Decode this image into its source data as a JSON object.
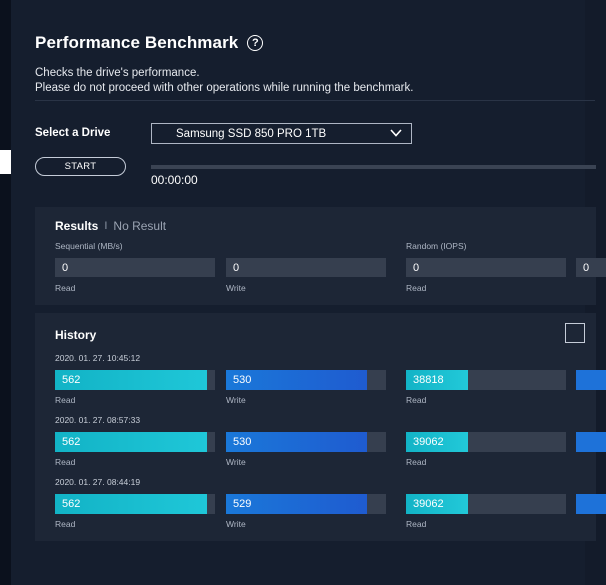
{
  "header": {
    "title": "Performance Benchmark",
    "help_icon": "question-circle-icon",
    "desc_line1": "Checks the drive's performance.",
    "desc_line2": "Please do not proceed with other operations while running the benchmark."
  },
  "drive": {
    "label": "Select a Drive",
    "selected": "Samsung SSD 850 PRO 1TB"
  },
  "controls": {
    "start_label": "START",
    "timer": "00:00:00"
  },
  "results": {
    "title": "Results",
    "separator": "I",
    "status": "No Result",
    "sequential_label": "Sequential (MB/s)",
    "random_label": "Random (IOPS)",
    "seq_read": "0",
    "seq_write": "0",
    "rand_read": "0",
    "rand_write": "0",
    "read_label": "Read",
    "write_label": "Write"
  },
  "history": {
    "title": "History",
    "entries": [
      {
        "timestamp": "2020. 01. 27. 10:45:12",
        "seq_read": "562",
        "seq_write": "530",
        "rand_read": "38818",
        "seq_read_fill": 0.95,
        "seq_write_fill": 0.88,
        "rand_read_fill": 0.39
      },
      {
        "timestamp": "2020. 01. 27. 08:57:33",
        "seq_read": "562",
        "seq_write": "530",
        "rand_read": "39062",
        "seq_read_fill": 0.95,
        "seq_write_fill": 0.88,
        "rand_read_fill": 0.39
      },
      {
        "timestamp": "2020. 01. 27. 08:44:19",
        "seq_read": "562",
        "seq_write": "529",
        "rand_read": "39062",
        "seq_read_fill": 0.95,
        "seq_write_fill": 0.88,
        "rand_read_fill": 0.39
      }
    ],
    "read_label": "Read",
    "write_label": "Write"
  },
  "colors": {
    "background": "#151e2e",
    "card": "#1d2636",
    "read_accent": "#1fc7d8",
    "write_accent": "#1f5bd0"
  }
}
